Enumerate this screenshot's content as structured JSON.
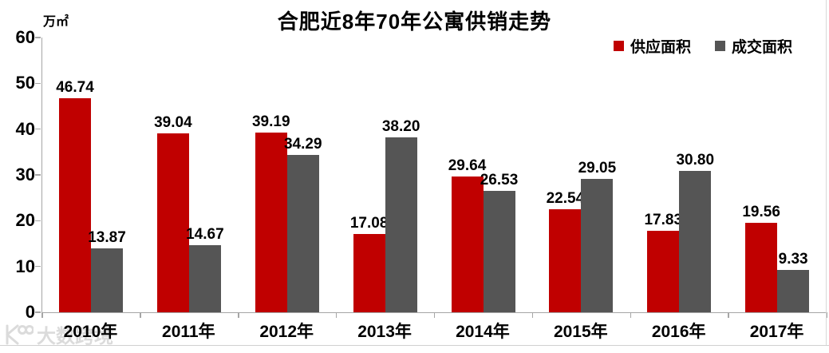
{
  "title": "合肥近8年70年公寓供销走势",
  "unit_label": "万㎡",
  "legend": [
    {
      "label": "供应面积",
      "color": "#c00000"
    },
    {
      "label": "成交面积",
      "color": "#555555"
    }
  ],
  "watermark": "大数跨境",
  "colors": {
    "supply": "#c00000",
    "sold": "#555555",
    "axis": "#a6a6a6",
    "label": "#000000"
  },
  "chart_data": {
    "type": "bar",
    "title": "合肥近8年70年公寓供销走势",
    "ylabel": "万㎡",
    "xlabel": "",
    "ylim": [
      0,
      60
    ],
    "yticks": [
      0,
      10,
      20,
      30,
      40,
      50,
      60
    ],
    "grid": false,
    "legend_position": "top-right",
    "categories": [
      "2010年",
      "2011年",
      "2012年",
      "2013年",
      "2014年",
      "2015年",
      "2016年",
      "2017年"
    ],
    "series": [
      {
        "name": "供应面积",
        "color": "#c00000",
        "values": [
          46.74,
          39.04,
          39.19,
          17.08,
          29.64,
          22.54,
          17.83,
          19.56
        ]
      },
      {
        "name": "成交面积",
        "color": "#555555",
        "values": [
          13.87,
          14.67,
          34.29,
          38.2,
          26.53,
          29.05,
          30.8,
          9.33
        ]
      }
    ]
  }
}
